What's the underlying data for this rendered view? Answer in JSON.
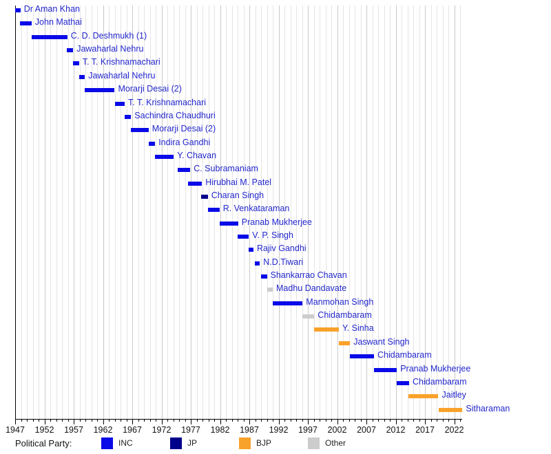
{
  "chart_data": {
    "type": "bar",
    "subtype": "gantt-timeline",
    "title": "",
    "xlabel": "",
    "ylabel": "",
    "x_axis": {
      "start_year": 1947,
      "end_year": 2023.4,
      "major_tick_interval": 5,
      "minor_tick_interval": 1,
      "tick_labels": [
        "1947",
        "1952",
        "1957",
        "1962",
        "1967",
        "1972",
        "1977",
        "1982",
        "1987",
        "1992",
        "1997",
        "2002",
        "2007",
        "2012",
        "2017",
        "2022"
      ],
      "grid": "vertical-yearly"
    },
    "legend": {
      "title": "Political Party:",
      "position": "bottom",
      "items": [
        {
          "label": "INC",
          "color": "#0a0ae8"
        },
        {
          "label": "JP",
          "color": "#00008b"
        },
        {
          "label": "BJP",
          "color": "#f9a22b"
        },
        {
          "label": "Other",
          "color": "#cccccc"
        }
      ]
    },
    "ministers": [
      {
        "name": "Dr Aman Khan",
        "party": "INC",
        "start": 1947.0,
        "end": 1947.9
      },
      {
        "name": "John Mathai",
        "party": "INC",
        "start": 1947.8,
        "end": 1949.8
      },
      {
        "name": "C. D. Deshmukh (1)",
        "party": "INC",
        "start": 1949.8,
        "end": 1955.9
      },
      {
        "name": "Jawaharlal Nehru",
        "party": "INC",
        "start": 1955.8,
        "end": 1956.9
      },
      {
        "name": "T. T. Krishnamachari",
        "party": "INC",
        "start": 1956.9,
        "end": 1957.9
      },
      {
        "name": "Jawaharlal Nehru",
        "party": "INC",
        "start": 1957.9,
        "end": 1958.9
      },
      {
        "name": "Morarji Desai (2)",
        "party": "INC",
        "start": 1958.9,
        "end": 1964.0
      },
      {
        "name": "T. T. Krishnamachari",
        "party": "INC",
        "start": 1964.0,
        "end": 1965.7
      },
      {
        "name": "Sachindra Chaudhuri",
        "party": "INC",
        "start": 1965.7,
        "end": 1966.8
      },
      {
        "name": "Morarji Desai (2)",
        "party": "INC",
        "start": 1966.8,
        "end": 1969.8
      },
      {
        "name": "Indira Gandhi",
        "party": "INC",
        "start": 1969.8,
        "end": 1970.9
      },
      {
        "name": "Y. Chavan",
        "party": "INC",
        "start": 1970.9,
        "end": 1974.1
      },
      {
        "name": "C. Subramaniam",
        "party": "INC",
        "start": 1974.8,
        "end": 1976.9
      },
      {
        "name": "Hirubhai M. Patel",
        "party": "INC",
        "start": 1976.5,
        "end": 1978.9
      },
      {
        "name": "Charan Singh",
        "party": "JP",
        "start": 1978.8,
        "end": 1979.9
      },
      {
        "name": "R. Venkataraman",
        "party": "INC",
        "start": 1979.9,
        "end": 1981.9
      },
      {
        "name": "Pranab Mukherjee",
        "party": "INC",
        "start": 1981.9,
        "end": 1985.1
      },
      {
        "name": "V. P. Singh",
        "party": "INC",
        "start": 1985.0,
        "end": 1986.9
      },
      {
        "name": "Rajiv Gandhi",
        "party": "INC",
        "start": 1986.9,
        "end": 1987.7
      },
      {
        "name": "N.D.Tiwari",
        "party": "INC",
        "start": 1987.9,
        "end": 1988.8
      },
      {
        "name": "Shankarrao Chavan",
        "party": "INC",
        "start": 1989.0,
        "end": 1990.0
      },
      {
        "name": "Madhu Dandavate",
        "party": "Other",
        "start": 1990.0,
        "end": 1991.0
      },
      {
        "name": "Manmohan Singh",
        "party": "INC",
        "start": 1991.0,
        "end": 1996.1
      },
      {
        "name": "Chidambaram",
        "party": "Other",
        "start": 1996.1,
        "end": 1998.1
      },
      {
        "name": "Y. Sinha",
        "party": "BJP",
        "start": 1998.1,
        "end": 2002.3
      },
      {
        "name": "Jaswant Singh",
        "party": "BJP",
        "start": 2002.3,
        "end": 2004.2
      },
      {
        "name": "Chidambaram",
        "party": "INC",
        "start": 2004.2,
        "end": 2008.3
      },
      {
        "name": "Pranab Mukherjee",
        "party": "INC",
        "start": 2008.3,
        "end": 2012.2
      },
      {
        "name": "Chidambaram",
        "party": "INC",
        "start": 2012.2,
        "end": 2014.3
      },
      {
        "name": "Jaitley",
        "party": "BJP",
        "start": 2014.2,
        "end": 2019.3
      },
      {
        "name": "Sitharaman",
        "party": "BJP",
        "start": 2019.3,
        "end": 2023.4
      }
    ],
    "colors": {
      "name_text": "#2226cc",
      "axis_text": "#111111",
      "axis_line": "#000000",
      "grid_minor": "#e4e4e4",
      "grid_major": "#c9c9c9",
      "background": "#ffffff"
    }
  }
}
